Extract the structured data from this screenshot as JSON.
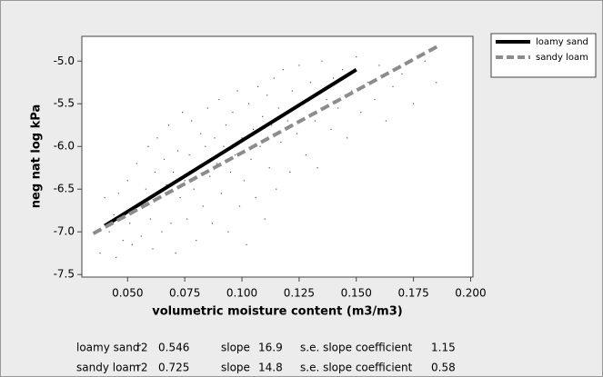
{
  "chart_data": {
    "type": "scatter",
    "x_label": "volumetric moisture content (m3/m3)",
    "y_label": "neg nat log kPa",
    "xlim": [
      0.03,
      0.201
    ],
    "ylim": [
      -7.53,
      -4.71
    ],
    "xticks": [
      {
        "value": 0.05,
        "label": "0.050"
      },
      {
        "value": 0.075,
        "label": "0.075"
      },
      {
        "value": 0.1,
        "label": "0.100"
      },
      {
        "value": 0.125,
        "label": "0.125"
      },
      {
        "value": 0.15,
        "label": "0.150"
      },
      {
        "value": 0.175,
        "label": "0.175"
      },
      {
        "value": 0.2,
        "label": "0.200"
      }
    ],
    "yticks": [
      {
        "value": -5,
        "label": "-5.0"
      },
      {
        "value": -5.5,
        "label": "-5.5"
      },
      {
        "value": -6,
        "label": "-6.0"
      },
      {
        "value": -6.5,
        "label": "-6.5"
      },
      {
        "value": -7,
        "label": "-7.0"
      },
      {
        "value": -7.5,
        "label": "-7.5"
      }
    ],
    "points": {
      "color": "#555555",
      "x": [
        0.038,
        0.04,
        0.042,
        0.044,
        0.045,
        0.046,
        0.048,
        0.05,
        0.051,
        0.052,
        0.054,
        0.055,
        0.056,
        0.058,
        0.059,
        0.06,
        0.061,
        0.062,
        0.063,
        0.064,
        0.065,
        0.066,
        0.067,
        0.068,
        0.069,
        0.07,
        0.071,
        0.072,
        0.073,
        0.074,
        0.075,
        0.076,
        0.077,
        0.078,
        0.079,
        0.08,
        0.081,
        0.082,
        0.083,
        0.084,
        0.085,
        0.086,
        0.087,
        0.088,
        0.089,
        0.09,
        0.091,
        0.092,
        0.093,
        0.094,
        0.095,
        0.096,
        0.097,
        0.098,
        0.099,
        0.1,
        0.101,
        0.102,
        0.103,
        0.104,
        0.105,
        0.106,
        0.107,
        0.108,
        0.109,
        0.11,
        0.111,
        0.112,
        0.113,
        0.114,
        0.115,
        0.116,
        0.117,
        0.118,
        0.12,
        0.121,
        0.122,
        0.124,
        0.125,
        0.127,
        0.128,
        0.13,
        0.132,
        0.133,
        0.135,
        0.137,
        0.139,
        0.14,
        0.142,
        0.144,
        0.146,
        0.148,
        0.15,
        0.152,
        0.155,
        0.158,
        0.16,
        0.163,
        0.166,
        0.17,
        0.175,
        0.18,
        0.185
      ],
      "y": [
        -7.25,
        -6.6,
        -7.0,
        -6.8,
        -7.3,
        -6.55,
        -7.1,
        -6.4,
        -6.9,
        -7.15,
        -6.2,
        -6.7,
        -7.05,
        -6.5,
        -6.0,
        -6.85,
        -7.2,
        -6.3,
        -5.9,
        -6.6,
        -7.0,
        -6.15,
        -6.45,
        -5.75,
        -6.9,
        -6.3,
        -7.25,
        -6.05,
        -6.6,
        -5.6,
        -6.4,
        -6.85,
        -6.1,
        -5.7,
        -6.5,
        -7.1,
        -6.25,
        -5.85,
        -6.7,
        -6.0,
        -5.55,
        -6.35,
        -6.9,
        -5.9,
        -6.2,
        -5.45,
        -6.55,
        -6.0,
        -5.75,
        -7.0,
        -6.3,
        -5.6,
        -6.1,
        -5.35,
        -6.7,
        -5.9,
        -6.4,
        -7.15,
        -5.5,
        -6.15,
        -5.8,
        -6.6,
        -5.3,
        -6.0,
        -5.65,
        -6.85,
        -5.4,
        -6.25,
        -5.75,
        -5.2,
        -6.5,
        -5.55,
        -5.95,
        -5.1,
        -5.7,
        -6.3,
        -5.35,
        -5.85,
        -5.05,
        -5.5,
        -6.1,
        -5.25,
        -5.7,
        -6.25,
        -5.0,
        -5.45,
        -5.8,
        -5.2,
        -5.55,
        -5.1,
        -5.9,
        -5.35,
        -4.95,
        -5.6,
        -5.25,
        -5.45,
        -5.05,
        -5.7,
        -5.3,
        -5.15,
        -5.5,
        -5.0,
        -5.25
      ]
    },
    "series": [
      {
        "name": "loamy sand",
        "color": "#000000",
        "dash": false,
        "x": [
          0.04,
          0.15
        ],
        "values": [
          -6.93,
          -5.1
        ]
      },
      {
        "name": "sandy loam",
        "color": "#8c8c8c",
        "dash": true,
        "x": [
          0.035,
          0.186
        ],
        "values": [
          -7.02,
          -4.82
        ]
      }
    ],
    "stat_labels": [
      "r2",
      "slope",
      "s.e. slope coefficient"
    ],
    "stats": [
      {
        "name": "loamy sand",
        "r2": 0.546,
        "slope": 16.9,
        "se": 1.15
      },
      {
        "name": "sandy loam",
        "r2": 0.725,
        "slope": 14.8,
        "se": 0.58
      }
    ]
  }
}
